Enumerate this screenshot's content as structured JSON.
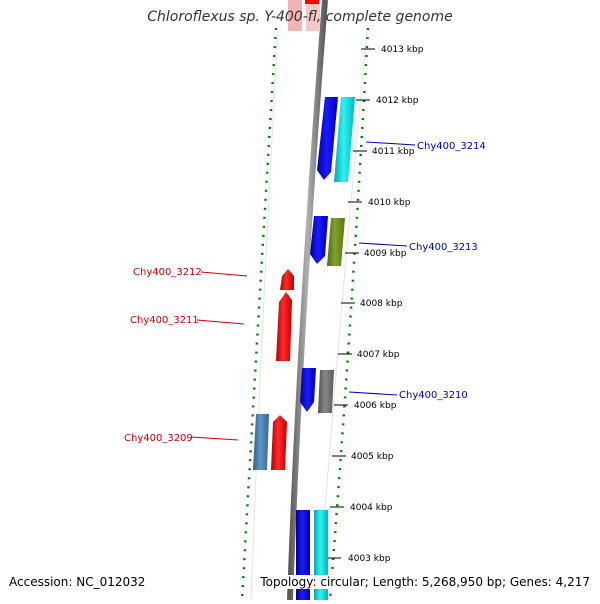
{
  "title": "Chloroflexus sp. Y-400-fl, complete genome",
  "footer": {
    "accession": "Accession: NC_012032",
    "summary": "Topology: circular; Length: 5,268,950 bp; Genes: 4,217"
  },
  "colors": {
    "forward_gene": "#ff0000",
    "reverse_gene": "#0000ff",
    "label_forward": "#cc0000",
    "label_reverse": "#0000bb",
    "backbone": "#808080",
    "dotted_ring": "#008000",
    "cyan_gene": "#00e0e0",
    "olive_gene": "#6b8e23",
    "gray_gene": "#707070",
    "steelblue_gene": "#4682b4",
    "faded_gene": "#f5b5b5"
  },
  "ticks": [
    {
      "label": "4013 kbp"
    },
    {
      "label": "4012 kbp"
    },
    {
      "label": "4011 kbp"
    },
    {
      "label": "4010 kbp"
    },
    {
      "label": "4009 kbp"
    },
    {
      "label": "4008 kbp"
    },
    {
      "label": "4007 kbp"
    },
    {
      "label": "4006 kbp"
    },
    {
      "label": "4005 kbp"
    },
    {
      "label": "4004 kbp"
    },
    {
      "label": "4003 kbp"
    }
  ],
  "gene_labels": [
    {
      "name": "Chy400_3214",
      "strand": "reverse"
    },
    {
      "name": "Chy400_3213",
      "strand": "reverse"
    },
    {
      "name": "Chy400_3212",
      "strand": "forward"
    },
    {
      "name": "Chy400_3211",
      "strand": "forward"
    },
    {
      "name": "Chy400_3210",
      "strand": "reverse"
    },
    {
      "name": "Chy400_3209",
      "strand": "forward"
    }
  ]
}
